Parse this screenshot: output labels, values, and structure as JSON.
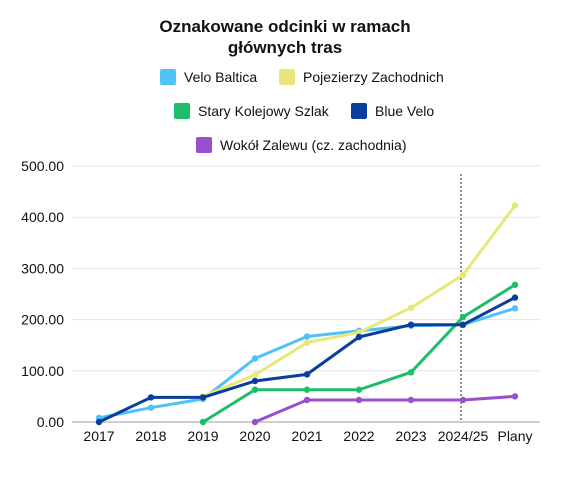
{
  "chart_data": {
    "type": "line",
    "title_lines": [
      "Oznakowane odcinki w ramach",
      "głównych tras"
    ],
    "categories": [
      "2017",
      "2018",
      "2019",
      "2020",
      "2021",
      "2022",
      "2023",
      "2024/25",
      "Plany"
    ],
    "ylim": [
      0,
      500
    ],
    "yticks": [
      "0.00",
      "100.00",
      "200.00",
      "300.00",
      "400.00",
      "500.00"
    ],
    "grid": true,
    "legend_position": "top",
    "separator_after_category": "2024/25",
    "series": [
      {
        "name": "Velo Baltica",
        "color": "#4fc3f7",
        "values": [
          8,
          28,
          45,
          124,
          167,
          178,
          188,
          190,
          222
        ]
      },
      {
        "name": "Pojezierzy Zachodnich",
        "color": "#e6e879",
        "values": [
          null,
          null,
          50,
          92,
          155,
          175,
          223,
          287,
          423
        ]
      },
      {
        "name": "Stary Kolejowy Szlak",
        "color": "#1dbe6a",
        "values": [
          null,
          null,
          0,
          63,
          63,
          63,
          97,
          205,
          268
        ]
      },
      {
        "name": "Blue Velo",
        "color": "#0a3d9c",
        "values": [
          0,
          48,
          48,
          80,
          93,
          166,
          190,
          190,
          243
        ]
      },
      {
        "name": "Wokół Zalewu (cz. zachodnia)",
        "color": "#9a4fd1",
        "values": [
          null,
          null,
          null,
          0,
          43,
          43,
          43,
          43,
          50
        ]
      }
    ]
  }
}
